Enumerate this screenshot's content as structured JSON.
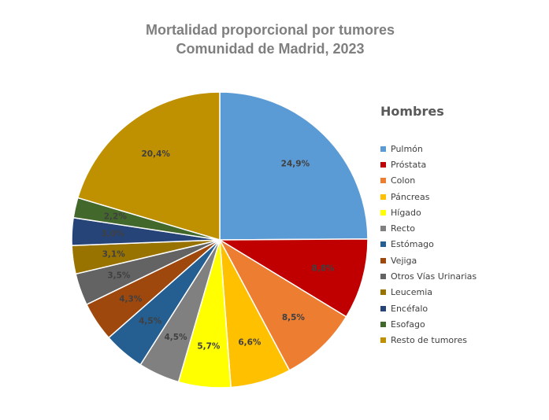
{
  "chart_data": {
    "type": "pie",
    "title": "Mortalidad proporcional por tumores",
    "subtitle": "Comunidad de Madrid, 2023",
    "legend_title": "Hombres",
    "legend_position": "right",
    "slices": [
      {
        "name": "Pulmón",
        "value": 24.9,
        "label": "24,9%",
        "color": "#5b9bd5"
      },
      {
        "name": "Próstata",
        "value": 8.8,
        "label": "8,8%",
        "color": "#c00000"
      },
      {
        "name": "Colon",
        "value": 8.5,
        "label": "8,5%",
        "color": "#ed7d31"
      },
      {
        "name": "Páncreas",
        "value": 6.6,
        "label": "6,6%",
        "color": "#ffc000"
      },
      {
        "name": "Hígado",
        "value": 5.7,
        "label": "5,7%",
        "color": "#ffff00"
      },
      {
        "name": "Recto",
        "value": 4.5,
        "label": "4,5%",
        "color": "#808080"
      },
      {
        "name": "Estómago",
        "value": 4.5,
        "label": "4,5%",
        "color": "#255e91"
      },
      {
        "name": "Vejiga",
        "value": 4.3,
        "label": "4,3%",
        "color": "#9e480e"
      },
      {
        "name": "Otros Vías Urinarias",
        "value": 3.5,
        "label": "3,5%",
        "color": "#636363"
      },
      {
        "name": "Leucemia",
        "value": 3.1,
        "label": "3,1%",
        "color": "#997300"
      },
      {
        "name": "Encéfalo",
        "value": 3.0,
        "label": "3,0%",
        "color": "#264478"
      },
      {
        "name": "Esofago",
        "value": 2.2,
        "label": "2,2%",
        "color": "#43682b"
      },
      {
        "name": "Resto de tumores",
        "value": 20.4,
        "label": "20,4%",
        "color": "#bf9000"
      }
    ]
  }
}
